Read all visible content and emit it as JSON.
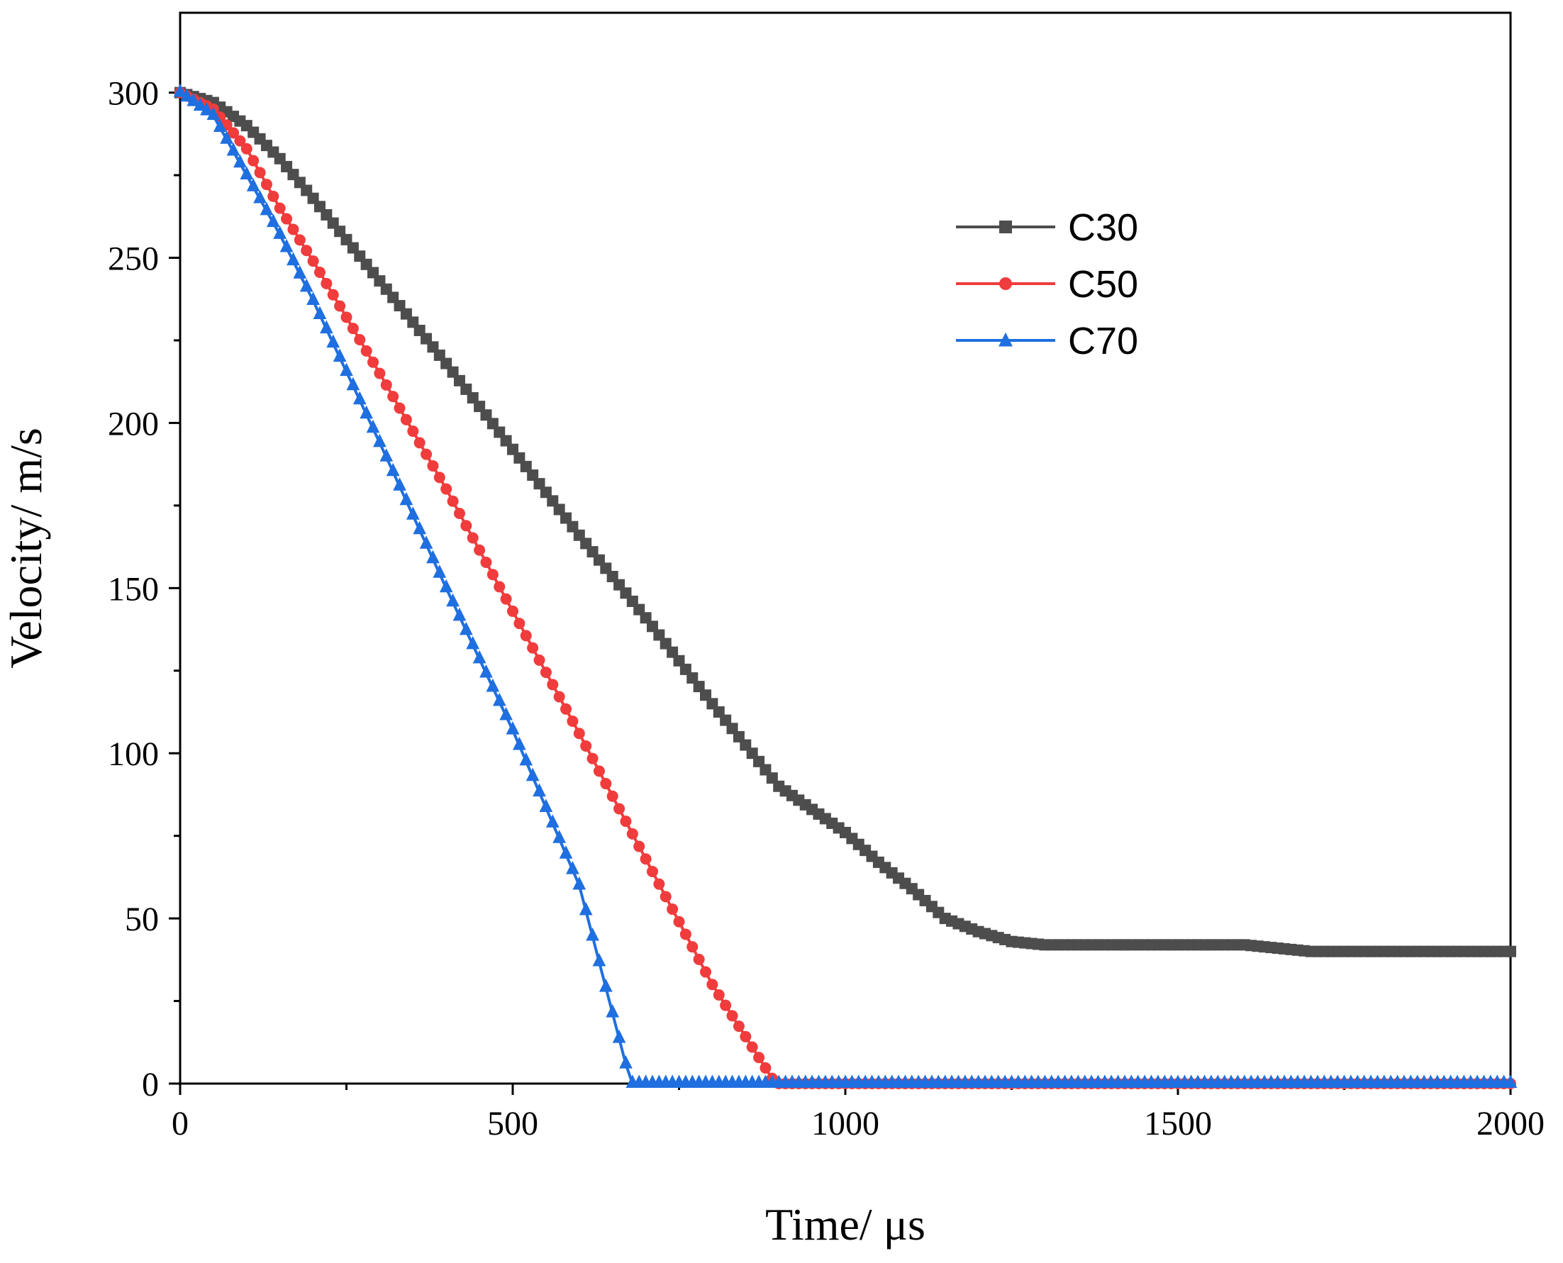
{
  "chart_data": {
    "type": "line",
    "title": "",
    "xlabel": "Time/ μs",
    "ylabel": "Velocity/ m/s",
    "xlim": [
      0,
      2000
    ],
    "ylim": [
      0,
      325
    ],
    "xticks": [
      0,
      500,
      1000,
      1500,
      2000
    ],
    "yticks": [
      0,
      50,
      100,
      150,
      200,
      250,
      300
    ],
    "grid": false,
    "legend_position": "top-right",
    "series": [
      {
        "name": "C30",
        "color": "#4d4d4d",
        "marker": "square",
        "points": [
          [
            0,
            300
          ],
          [
            50,
            297
          ],
          [
            100,
            290
          ],
          [
            150,
            280
          ],
          [
            200,
            268
          ],
          [
            300,
            243
          ],
          [
            400,
            218
          ],
          [
            500,
            192
          ],
          [
            600,
            166
          ],
          [
            700,
            141
          ],
          [
            800,
            115
          ],
          [
            900,
            90
          ],
          [
            1000,
            76
          ],
          [
            1050,
            67
          ],
          [
            1100,
            59
          ],
          [
            1150,
            50
          ],
          [
            1200,
            46
          ],
          [
            1250,
            43
          ],
          [
            1300,
            42
          ],
          [
            1400,
            42
          ],
          [
            1500,
            42
          ],
          [
            1600,
            42
          ],
          [
            1650,
            41
          ],
          [
            1700,
            40
          ],
          [
            1750,
            40
          ],
          [
            2000,
            40
          ]
        ]
      },
      {
        "name": "C50",
        "color": "#f03c3c",
        "marker": "circle",
        "points": [
          [
            0,
            300
          ],
          [
            50,
            295
          ],
          [
            100,
            283
          ],
          [
            150,
            265
          ],
          [
            200,
            249
          ],
          [
            300,
            215
          ],
          [
            400,
            180
          ],
          [
            500,
            143
          ],
          [
            600,
            106
          ],
          [
            700,
            68
          ],
          [
            800,
            30
          ],
          [
            895,
            0
          ],
          [
            2000,
            0
          ]
        ]
      },
      {
        "name": "C70",
        "color": "#1f6fe0",
        "marker": "triangle",
        "points": [
          [
            0,
            300
          ],
          [
            50,
            293
          ],
          [
            100,
            275
          ],
          [
            150,
            257
          ],
          [
            200,
            237
          ],
          [
            300,
            194
          ],
          [
            400,
            150
          ],
          [
            500,
            107
          ],
          [
            600,
            60
          ],
          [
            675,
            2
          ],
          [
            680,
            0
          ],
          [
            2000,
            0
          ]
        ]
      }
    ]
  }
}
